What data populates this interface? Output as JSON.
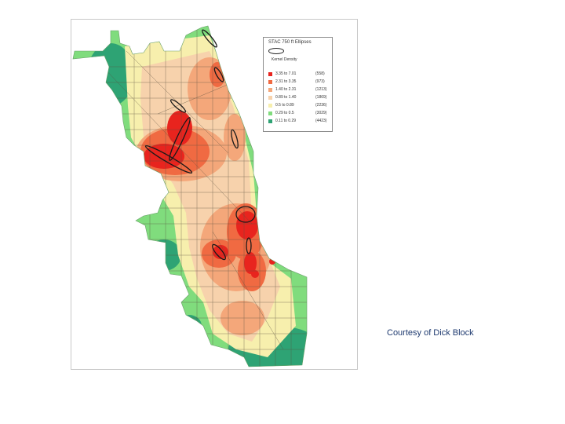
{
  "credit": "Courtesy of Dick Block",
  "legend": {
    "title": "STAC 750 ft  Ellipses",
    "density_label": "Kernel Density",
    "classes": [
      {
        "range": "3.35 to 7.01",
        "count": "(558)",
        "color": "#e8241e"
      },
      {
        "range": "2.31 to 3.35",
        "count": "(973)",
        "color": "#f06a42"
      },
      {
        "range": "1.40 to 2.31",
        "count": "(1213)",
        "color": "#f4a77a"
      },
      {
        "range": "0.89 to 1.40",
        "count": "(1869)",
        "color": "#f7d2ac"
      },
      {
        "range": "0.5 to 0.89",
        "count": "(2236)",
        "color": "#f7efad"
      },
      {
        "range": "0.29 to 0.5",
        "count": "(3029)",
        "color": "#80dc7d"
      },
      {
        "range": "0.11 to 0.29",
        "count": "(4423)",
        "color": "#2ea374"
      }
    ]
  },
  "map": {
    "subject": "Kernel density of incidents with STAC hot spot ellipses",
    "colors": {
      "outside": "#ffffff",
      "streets": "#5a5040",
      "ellipse": "#1a1a1a"
    }
  }
}
